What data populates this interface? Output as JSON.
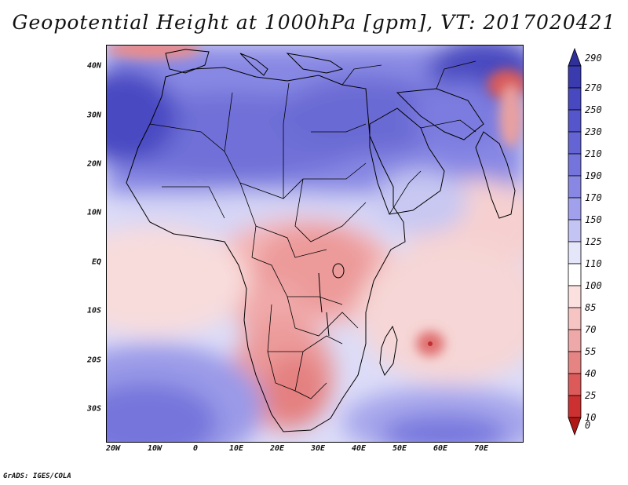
{
  "title": "Geopotential Height at 1000hPa [gpm], VT: 2017020421",
  "footer": "GrADS: IGES/COLA",
  "map": {
    "lat_labels": [
      "40N",
      "30N",
      "20N",
      "10N",
      "EQ",
      "10S",
      "20S",
      "30S"
    ],
    "lon_labels": [
      "20W",
      "10W",
      "0",
      "10E",
      "20E",
      "30E",
      "40E",
      "50E",
      "60E",
      "70E"
    ],
    "lon_range": [
      -22,
      80
    ],
    "lat_range": [
      -37,
      45
    ]
  },
  "colorbar": {
    "labels": [
      "290",
      "270",
      "250",
      "230",
      "210",
      "190",
      "170",
      "150",
      "125",
      "110",
      "100",
      "85",
      "70",
      "55",
      "40",
      "25",
      "10",
      "0"
    ],
    "colors": [
      "#30309a",
      "#3b3bb0",
      "#4848c0",
      "#5656cc",
      "#6464d4",
      "#7474dc",
      "#8888e4",
      "#a0a0ec",
      "#c4c4f4",
      "#e6e6fa",
      "#ffffff",
      "#fbe0e0",
      "#f7c4c4",
      "#efa8a8",
      "#e68484",
      "#dc5a5a",
      "#cc3030",
      "#b01818"
    ]
  }
}
